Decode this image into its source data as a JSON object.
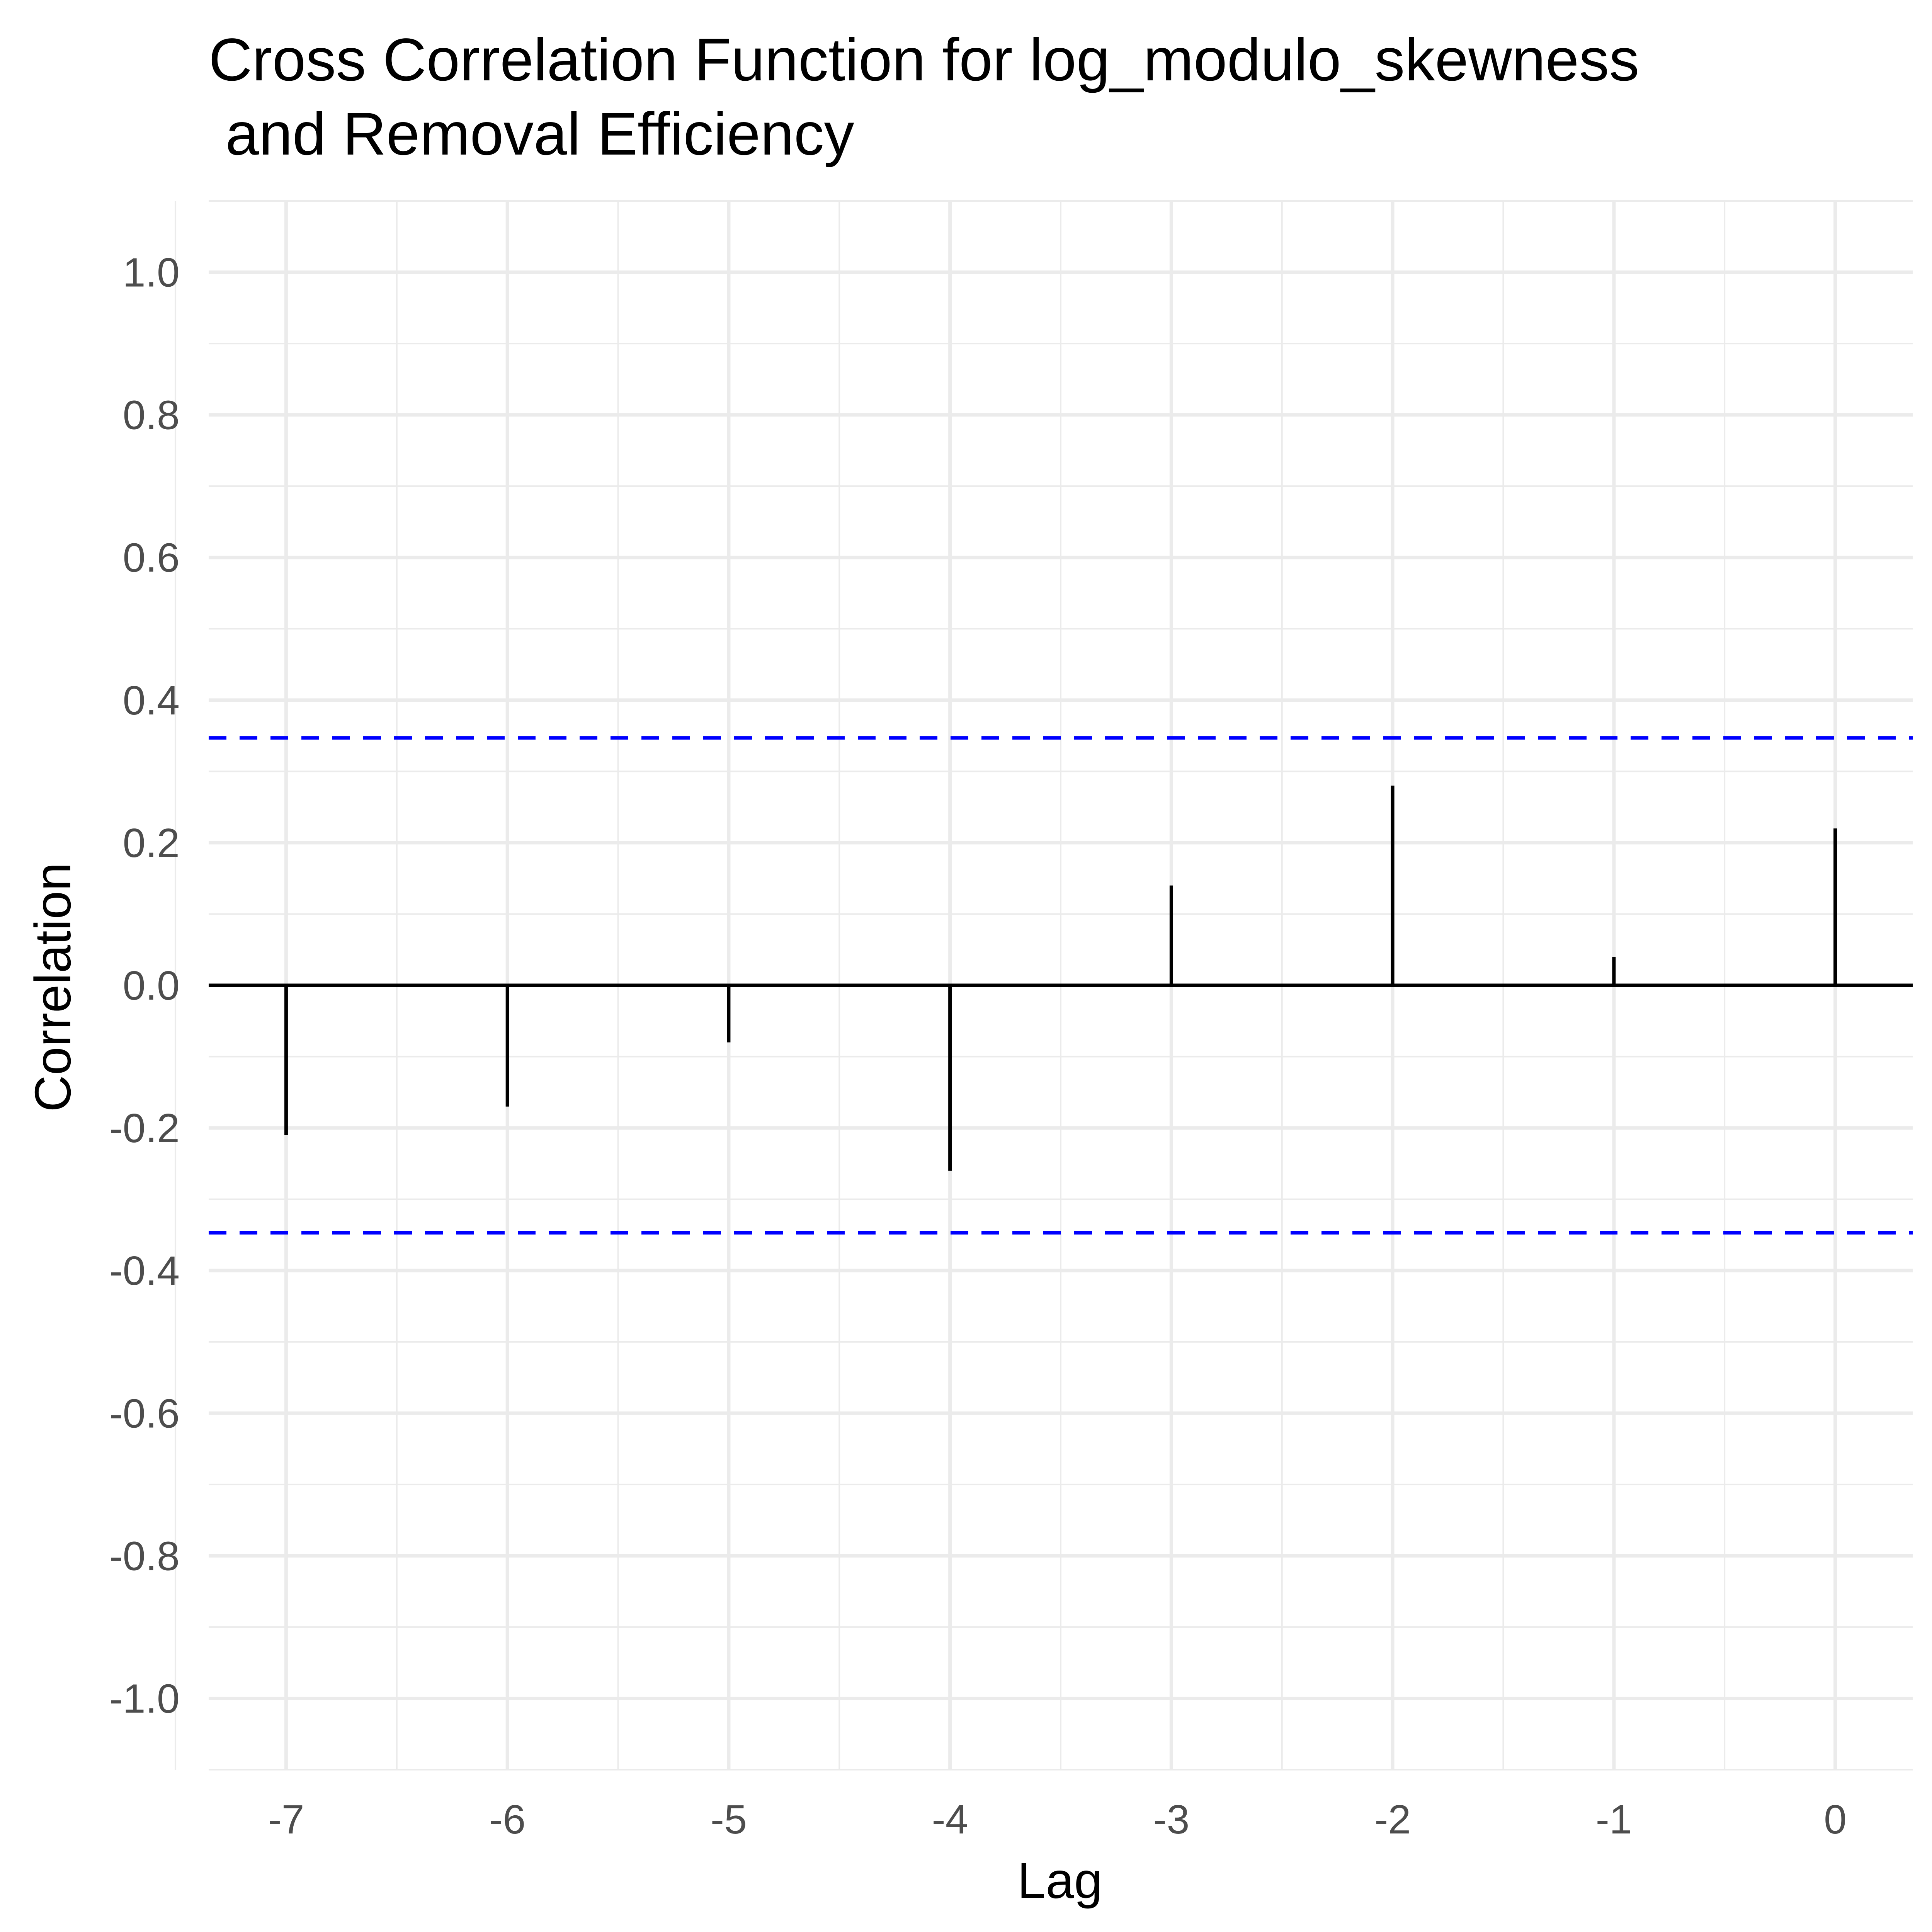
{
  "chart_data": {
    "type": "bar",
    "title_lines": [
      "Cross Correlation Function for log_modulo_skewness",
      " and Removal Efficiency"
    ],
    "xlabel": "Lag",
    "ylabel": "Correlation",
    "x": [
      -7,
      -6,
      -5,
      -4,
      -3,
      -2,
      -1,
      0
    ],
    "values": [
      -0.21,
      -0.17,
      -0.08,
      -0.26,
      0.14,
      0.28,
      0.04,
      0.22
    ],
    "xlim": [
      -7.35,
      0.35
    ],
    "ylim": [
      -1.1,
      1.1
    ],
    "x_ticks": [
      "-7",
      "-6",
      "-5",
      "-4",
      "-3",
      "-2",
      "-1",
      "0"
    ],
    "y_ticks": [
      "1.0",
      "0.8",
      "0.6",
      "0.4",
      "0.2",
      "0.0",
      "-0.2",
      "-0.4",
      "-0.6",
      "-0.8",
      "-1.0"
    ],
    "y_tick_values": [
      1.0,
      0.8,
      0.6,
      0.4,
      0.2,
      0.0,
      -0.2,
      -0.4,
      -0.6,
      -0.8,
      -1.0
    ],
    "confidence_bounds": [
      0.347,
      -0.347
    ],
    "grid": true,
    "colors": {
      "bars": "#000000",
      "confidence": "#0000ff",
      "grid": "#ebebeb"
    }
  }
}
